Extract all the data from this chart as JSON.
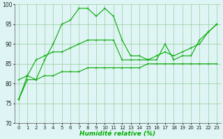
{
  "x": [
    0,
    1,
    2,
    3,
    4,
    5,
    6,
    7,
    8,
    9,
    10,
    11,
    12,
    13,
    14,
    15,
    16,
    17,
    18,
    19,
    20,
    21,
    22,
    23
  ],
  "series1": [
    76,
    82,
    81,
    86,
    90,
    95,
    96,
    99,
    99,
    97,
    99,
    97,
    91,
    87,
    87,
    86,
    86,
    90,
    86,
    87,
    87,
    91,
    93,
    95
  ],
  "series2": [
    81,
    82,
    86,
    87,
    88,
    88,
    89,
    90,
    91,
    91,
    91,
    91,
    86,
    86,
    86,
    86,
    87,
    88,
    87,
    88,
    89,
    90,
    93,
    95
  ],
  "series3": [
    76,
    81,
    81,
    82,
    82,
    83,
    83,
    83,
    84,
    84,
    84,
    84,
    84,
    84,
    84,
    85,
    85,
    85,
    85,
    85,
    85,
    85,
    85,
    85
  ],
  "line_color": "#00aa00",
  "bg_color": "#dff5f5",
  "grid_color": "#99cc99",
  "xlabel": "Humidité relative (%)",
  "ylim": [
    70,
    100
  ],
  "xlim": [
    -0.5,
    23.5
  ],
  "yticks": [
    70,
    75,
    80,
    85,
    90,
    95,
    100
  ],
  "xticks": [
    0,
    1,
    2,
    3,
    4,
    5,
    6,
    7,
    8,
    9,
    10,
    11,
    12,
    13,
    14,
    15,
    16,
    17,
    18,
    19,
    20,
    21,
    22,
    23
  ]
}
